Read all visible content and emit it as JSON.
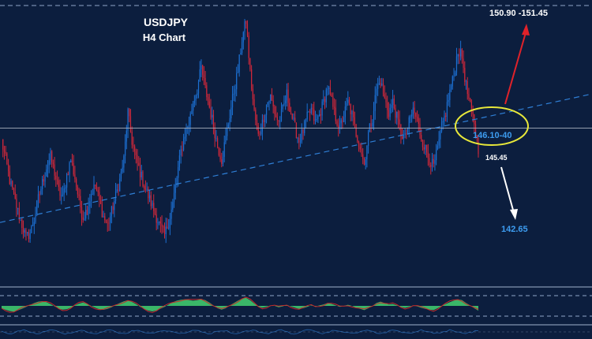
{
  "chart_data": {
    "type": "candlestick",
    "symbol": "USDJPY",
    "timeframe": "H4 Chart",
    "ylim": [
      141.5,
      152.0
    ],
    "candle_colors": {
      "up": "#1c6fd1",
      "down": "#d0283a"
    },
    "price_path": [
      146.9,
      146.2,
      145.4,
      144.8,
      144.2,
      143.7,
      143.2,
      143.4,
      143.9,
      144.7,
      145.3,
      145.9,
      146.3,
      145.7,
      145.0,
      144.7,
      145.6,
      146.2,
      145.5,
      144.6,
      144.0,
      144.3,
      144.9,
      145.2,
      144.6,
      144.0,
      143.7,
      144.2,
      144.8,
      145.4,
      146.2,
      148.0,
      146.9,
      146.2,
      145.7,
      145.2,
      144.8,
      144.4,
      144.0,
      143.6,
      143.3,
      143.8,
      144.5,
      145.5,
      146.5,
      147.2,
      147.6,
      148.4,
      148.9,
      149.7,
      148.9,
      148.2,
      147.5,
      146.7,
      146.2,
      147.0,
      147.9,
      148.8,
      149.6,
      150.8,
      151.5,
      149.5,
      148.0,
      147.1,
      147.6,
      148.3,
      148.6,
      148.0,
      147.6,
      148.1,
      148.7,
      148.0,
      147.4,
      146.9,
      147.3,
      147.8,
      148.1,
      147.6,
      147.9,
      148.4,
      149.0,
      148.4,
      147.8,
      147.4,
      147.9,
      148.4,
      147.9,
      147.2,
      146.7,
      146.0,
      147.2,
      147.8,
      148.9,
      149.2,
      148.5,
      148.0,
      148.4,
      147.8,
      147.2,
      147.0,
      147.6,
      148.1,
      147.7,
      147.0,
      146.6,
      146.2,
      145.9,
      146.6,
      147.4,
      148.0,
      148.8,
      149.4,
      150.4,
      150.1,
      149.0,
      148.2,
      147.6,
      146.6
    ],
    "horizontal_level": 147.4,
    "trendline": {
      "start": [
        0,
        143.8
      ],
      "end": [
        124,
        148.0
      ]
    },
    "indicator_values": [
      -0.25,
      -0.42,
      -0.55,
      -0.6,
      -0.48,
      -0.3,
      -0.12,
      0.1,
      0.3,
      0.45,
      0.5,
      0.4,
      0.2,
      -0.05,
      -0.28,
      -0.4,
      -0.35,
      -0.18,
      0.05,
      0.25,
      0.35,
      0.22,
      0.0,
      -0.2,
      -0.35,
      -0.42,
      -0.32,
      -0.15,
      0.1,
      0.3,
      0.48,
      0.6,
      0.42,
      0.18,
      -0.1,
      -0.32,
      -0.5,
      -0.58,
      -0.48,
      -0.3,
      -0.1,
      0.15,
      0.38,
      0.55,
      0.65,
      0.7,
      0.62,
      0.55,
      0.6,
      0.72,
      0.6,
      0.35,
      0.05,
      -0.25,
      -0.4,
      -0.25,
      0.05,
      0.3,
      0.55,
      0.78,
      0.85,
      0.6,
      0.25,
      -0.05,
      -0.2,
      -0.1,
      0.05,
      0.0,
      -0.15,
      -0.05,
      0.1,
      -0.05,
      -0.2,
      -0.32,
      -0.25,
      -0.1,
      0.05,
      -0.05,
      0.05,
      0.15,
      0.3,
      0.2,
      0.05,
      -0.1,
      0.0,
      0.12,
      0.0,
      -0.18,
      -0.32,
      -0.45,
      -0.25,
      0.0,
      0.3,
      0.45,
      0.3,
      0.15,
      0.2,
      0.05,
      -0.12,
      -0.22,
      -0.1,
      0.05,
      -0.05,
      -0.2,
      -0.32,
      -0.4,
      -0.45,
      -0.25,
      0.0,
      0.2,
      0.4,
      0.55,
      0.7,
      0.6,
      0.3,
      0.05,
      -0.25,
      -0.5
    ],
    "annotations": {
      "title": "USDJPY",
      "subtitle": "H4 Chart",
      "target_up": "150.90 -151.45",
      "support_zone": "146.10-40",
      "level_below": "145.45",
      "target_down": "142.65"
    },
    "colors": {
      "background": "#0c1e3e",
      "grid_dash": "#8fa6c8",
      "trendline": "#2f7fd6",
      "level_line": "#aeb6c2",
      "ellipse": "#e8e83a",
      "arrow_up": "#e0222a",
      "arrow_down": "#ffffff",
      "label_blue": "#3d9cf0",
      "label_white": "#ffffff",
      "indicator_fill": "#3dbf6a",
      "indicator_line": "#c82a2a"
    }
  }
}
